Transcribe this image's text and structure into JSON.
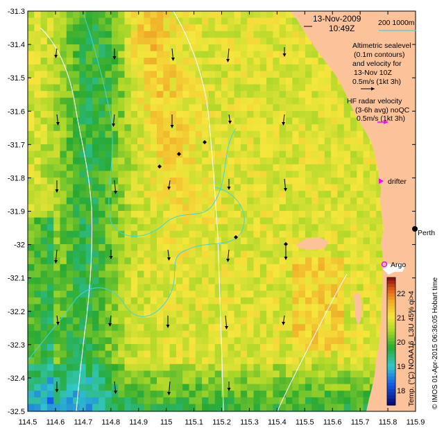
{
  "map": {
    "lon_range": [
      114.5,
      115.9
    ],
    "lat_range": [
      -32.5,
      -31.3
    ],
    "lon_ticks": [
      "114.5",
      "114.6",
      "114.7",
      "114.8",
      "114.9",
      "115",
      "115.1",
      "115.2",
      "115.3",
      "115.4",
      "115.5",
      "115.6",
      "115.7",
      "115.8",
      "115.9"
    ],
    "lat_ticks": [
      "-31.3",
      "-31.4",
      "-31.5",
      "-31.6",
      "-31.7",
      "-31.8",
      "-31.9",
      "-32",
      "-32.1",
      "-32.2",
      "-32.3",
      "-32.4",
      "-32.5"
    ]
  },
  "header": {
    "date": "13-Nov-2009",
    "time": "10:49Z"
  },
  "scale_bar": {
    "label": "200  1000m"
  },
  "legend": {
    "altimetric": [
      "Altimetric sealevel",
      "(0.1m contours)",
      "and velocity for",
      "13-Nov 10Z",
      "0.5m/s (1kt 3h)"
    ],
    "hf_radar": [
      "HF radar velocity",
      "(3-6h avg) noQC",
      "0.5m/s (1kt 3h)"
    ],
    "drifter": "drifter",
    "argo": "Argo"
  },
  "places": {
    "perth": "Perth"
  },
  "colorbar": {
    "ticks": [
      "22",
      "21",
      "20",
      "19",
      "18"
    ],
    "range": [
      17.5,
      22.7
    ],
    "label": "Temp. (°C) NOAA16_L3U 45% qi>4"
  },
  "credit": "© IMOS 01-Apr-2015 06:36:05 Hobart time",
  "colors": {
    "land": "#fcc39b",
    "cold": "#1a9b3a",
    "warm": "#e49a18",
    "argo": "#ff00ff",
    "contour_cyan": "#3ad7e6",
    "bathy": "#ffffff"
  }
}
